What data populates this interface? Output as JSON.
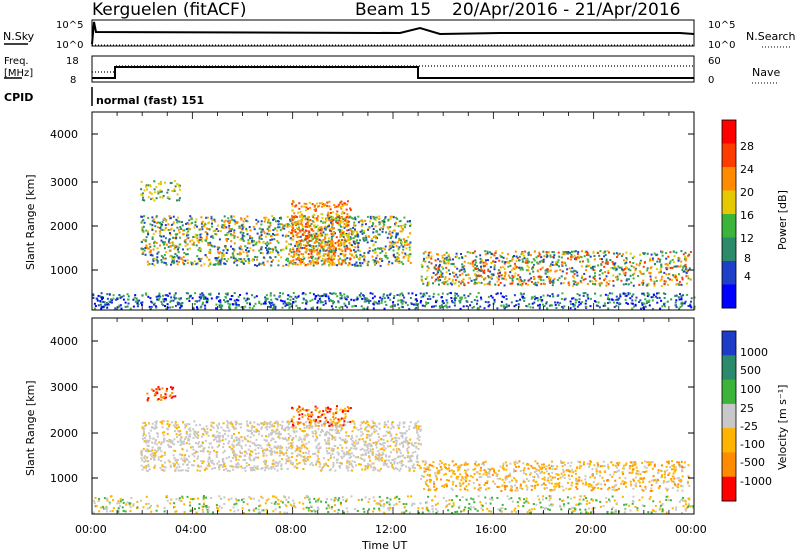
{
  "header": {
    "station": "Kerguelen (fitACF)",
    "beam": "Beam 15",
    "date_range": "20/Apr/2016 - 21/Apr/2016"
  },
  "noise_panel": {
    "left_label": "N.Sky",
    "left_ticks": [
      "10^5",
      "10^0"
    ],
    "right_ticks": [
      "10^5",
      "10^0"
    ],
    "right_label": "N.Search"
  },
  "freq_panel": {
    "left_label_1": "Freq.",
    "left_label_2": "[MHz]",
    "left_ticks": [
      "18",
      "8"
    ],
    "right_ticks": [
      "60",
      "0"
    ],
    "right_label": "Nave"
  },
  "cpid": {
    "label": "CPID",
    "text": "normal (fast) 151"
  },
  "x_axis": {
    "ticks": [
      "00:00",
      "04:00",
      "08:00",
      "12:00",
      "16:00",
      "20:00",
      "00:00"
    ],
    "label": "Time UT"
  },
  "power_panel": {
    "ylabel": "Slant Range [km]",
    "yticks": [
      "4000",
      "3000",
      "2000",
      "1000"
    ],
    "colorbar_label": "Power [dB]",
    "colorbar_ticks": [
      "28",
      "24",
      "20",
      "16",
      "12",
      "8",
      "4"
    ],
    "colors": [
      "#0000ff",
      "#1e40c8",
      "#2a8a6a",
      "#3cb43c",
      "#e6c800",
      "#ff8c00",
      "#ff3c00",
      "#ff0000"
    ]
  },
  "velocity_panel": {
    "ylabel": "Slant Range [km]",
    "yticks": [
      "4000",
      "3000",
      "2000",
      "1000"
    ],
    "colorbar_label": "Velocity [m s⁻¹]",
    "colorbar_ticks": [
      "1000",
      "500",
      "100",
      "25",
      "-25",
      "-100",
      "-500",
      "-1000"
    ],
    "colors": [
      "#1e3cc8",
      "#2a8a6a",
      "#3cb43c",
      "#c8c8c8",
      "#ffb400",
      "#ff8c00",
      "#ff0000"
    ]
  }
}
